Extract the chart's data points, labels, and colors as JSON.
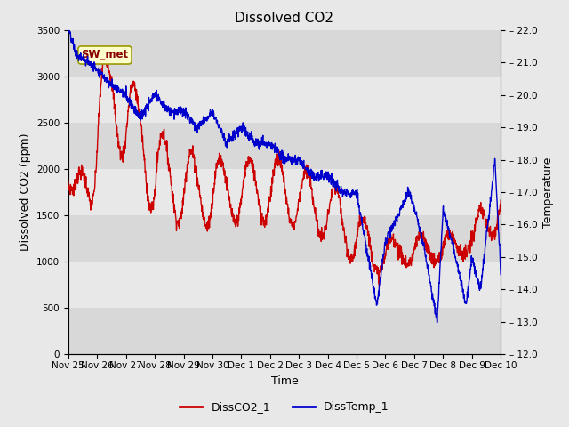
{
  "title": "Dissolved CO2",
  "xlabel": "Time",
  "ylabel_left": "Dissolved CO2 (ppm)",
  "ylabel_right": "Temperature",
  "ylim_left": [
    0,
    3500
  ],
  "ylim_right": [
    12.0,
    22.0
  ],
  "yticks_left": [
    0,
    500,
    1000,
    1500,
    2000,
    2500,
    3000,
    3500
  ],
  "yticks_right": [
    12.0,
    13.0,
    14.0,
    15.0,
    16.0,
    17.0,
    18.0,
    19.0,
    20.0,
    21.0,
    22.0
  ],
  "xtick_labels": [
    "Nov 25",
    "Nov 26",
    "Nov 27",
    "Nov 28",
    "Nov 29",
    "Nov 30",
    "Dec 1",
    "Dec 2",
    "Dec 3",
    "Dec 4",
    "Dec 5",
    "Dec 6",
    "Dec 7",
    "Dec 8",
    "Dec 9",
    "Dec 10"
  ],
  "co2_color": "#cc0000",
  "temp_color": "#0000cc",
  "legend_labels": [
    "DissCO2_1",
    "DissTemp_1"
  ],
  "label_box_text": "SW_met",
  "label_box_facecolor": "#ffffcc",
  "label_box_edgecolor": "#999900",
  "label_box_textcolor": "#880000",
  "background_color": "#e8e8e8",
  "hband_even": "#e0e0e0",
  "hband_odd": "#ebebeb",
  "title_fontsize": 11,
  "axis_label_fontsize": 9,
  "tick_fontsize": 7.5,
  "legend_fontsize": 9
}
